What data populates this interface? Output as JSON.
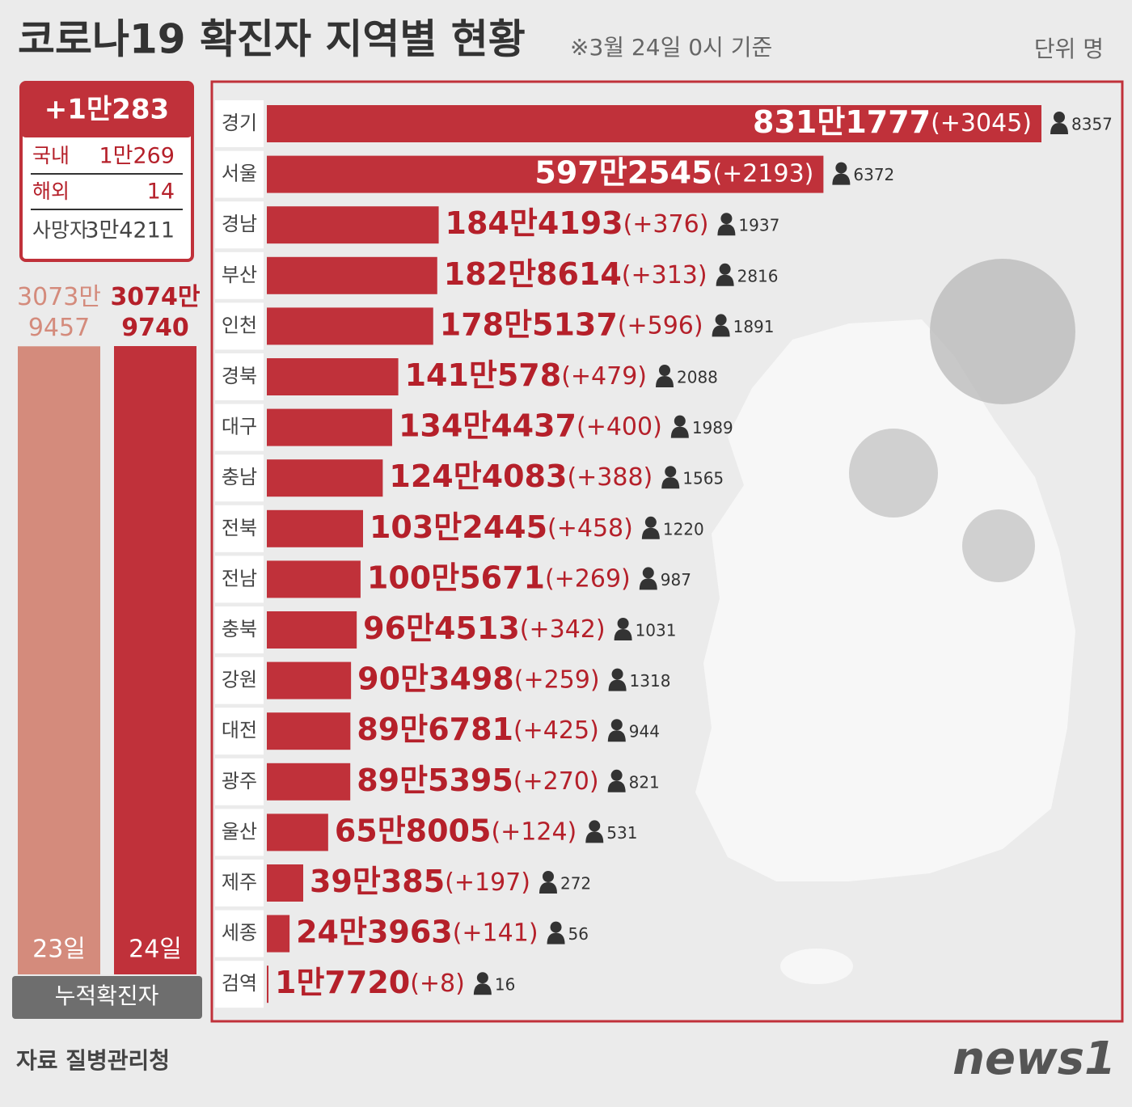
{
  "header": {
    "title": "코로나19 확진자 지역별 현황",
    "note": "※3월 24일 0시 기준",
    "unit": "단위 명"
  },
  "summary": {
    "total": "+1만283",
    "rows": [
      {
        "label": "국내",
        "value": "1만269"
      },
      {
        "label": "해외",
        "value": "14"
      }
    ],
    "deaths_label": "사망자",
    "deaths": "3만4211"
  },
  "chart_data": [
    {
      "type": "column",
      "categories": [
        "23일",
        "24일"
      ],
      "values": [
        30739457,
        30749740
      ],
      "value_labels": [
        "3073만 9457",
        "3074만 9740"
      ],
      "colors": [
        "#d48b7c",
        "#c0313a"
      ],
      "xlabel": "누적확진자"
    },
    {
      "type": "hbar",
      "color": "#c0313a",
      "categories": [
        "경기",
        "서울",
        "경남",
        "부산",
        "인천",
        "경북",
        "대구",
        "충남",
        "전북",
        "전남",
        "충북",
        "강원",
        "대전",
        "광주",
        "울산",
        "제주",
        "세종",
        "검역"
      ],
      "values": [
        8311777,
        5972545,
        1844193,
        1828614,
        1785137,
        1410578,
        1344437,
        1244083,
        1032445,
        1005671,
        964513,
        903498,
        896781,
        895395,
        658005,
        390385,
        243963,
        17720
      ],
      "value_labels": [
        "831만1777",
        "597만2545",
        "184만4193",
        "182만8614",
        "178만5137",
        "141만578",
        "134만4437",
        "124만4083",
        "103만2445",
        "100만5671",
        "96만4513",
        "90만3498",
        "89만6781",
        "89만5395",
        "65만8005",
        "39만385",
        "24만3963",
        "1만7720"
      ],
      "increase_labels": [
        "(+3045)",
        "(+2193)",
        "(+376)",
        "(+313)",
        "(+596)",
        "(+479)",
        "(+400)",
        "(+388)",
        "(+458)",
        "(+269)",
        "(+342)",
        "(+259)",
        "(+425)",
        "(+270)",
        "(+124)",
        "(+197)",
        "(+141)",
        "(+8)"
      ],
      "deaths": [
        8357,
        6372,
        1937,
        2816,
        1891,
        2088,
        1989,
        1565,
        1220,
        987,
        1031,
        1318,
        944,
        821,
        531,
        272,
        56,
        16
      ]
    }
  ],
  "footer": {
    "source": "자료  질병관리청",
    "logo": "news1"
  }
}
